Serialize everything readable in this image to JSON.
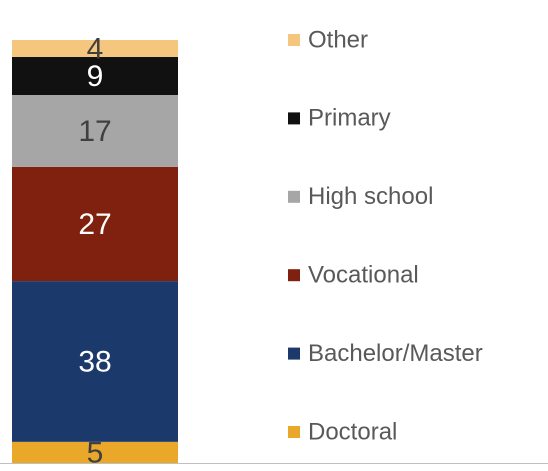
{
  "chart_data": {
    "type": "stacked-bar",
    "categories": [
      null
    ],
    "series": [
      {
        "name": "Doctoral",
        "color": "#e9a82a",
        "values": [
          5
        ]
      },
      {
        "name": "Bachelor/Master",
        "color": "#1b3a6b",
        "values": [
          38
        ]
      },
      {
        "name": "Vocational",
        "color": "#80200f",
        "values": [
          27
        ]
      },
      {
        "name": "High school",
        "color": "#a6a6a6",
        "values": [
          17
        ]
      },
      {
        "name": "Primary",
        "color": "#111111",
        "values": [
          9
        ]
      },
      {
        "name": "Other",
        "color": "#f5c77e",
        "values": [
          4
        ]
      }
    ],
    "ylim": [
      0,
      100
    ]
  }
}
